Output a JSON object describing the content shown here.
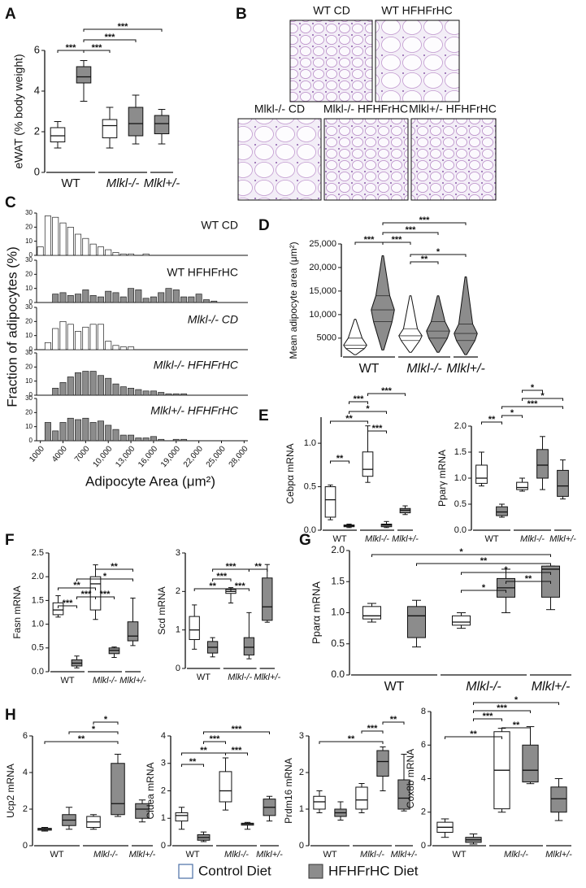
{
  "legend": [
    {
      "name": "Control Diet",
      "color": "#ffffff"
    },
    {
      "name": "HFHFrHC Diet",
      "color": "#8c8c8c"
    }
  ],
  "groups": [
    "WT",
    "Mlkl-/-",
    "Mlkl+/-"
  ],
  "micrographs": {
    "letter": "B",
    "labels": [
      "WT CD",
      "WT HFHFrHC",
      "Mlkl-/- CD",
      "Mlkl-/- HFHFrHC",
      "Mlkl+/- HFHFrHC"
    ]
  },
  "chart_data": [
    {
      "type": "box",
      "letter": "A",
      "ylabel": "eWAT (% body weight)",
      "ylim": [
        0,
        6
      ],
      "yticks": [
        0,
        2,
        4,
        6
      ],
      "series": [
        {
          "values": [
            [
              1.2,
              1.5,
              1.8,
              2.2,
              2.5
            ],
            [
              1.2,
              1.7,
              2.3,
              2.6,
              3.2
            ],
            null
          ]
        },
        {
          "values": [
            [
              3.5,
              4.4,
              4.7,
              5.2,
              5.5
            ],
            [
              1.4,
              1.8,
              2.4,
              3.2,
              3.8
            ],
            [
              1.4,
              1.9,
              2.4,
              2.8,
              3.1
            ]
          ]
        }
      ],
      "annotations": [
        "***",
        "***",
        "***",
        "***"
      ]
    },
    {
      "type": "histogram",
      "letter": "C",
      "ylabel": "Fraction of adipocytes (%)",
      "xlabel": "Adipocyte Area (μm²)",
      "bins": [
        500,
        1500,
        2500,
        3500,
        4500,
        5500,
        6500,
        7500,
        8500,
        9500,
        10500,
        11500,
        12500,
        13500,
        14500,
        15500,
        16500,
        17500,
        18500,
        19500,
        20500,
        21500,
        22500,
        23500,
        24500,
        25500,
        26500,
        27500,
        28500
      ],
      "xlim": [
        500,
        28500
      ],
      "xticks": [
        1000,
        4000,
        7000,
        {
          "value": 10000,
          "label": "10,000"
        },
        {
          "value": 13000,
          "label": "13,000"
        },
        {
          "value": 16000,
          "label": "16,000"
        },
        {
          "value": 19000,
          "label": "19,000"
        },
        {
          "value": 22000,
          "label": "22,000"
        },
        {
          "value": 25000,
          "label": "25,000"
        },
        {
          "value": 28000,
          "label": "28,000"
        }
      ],
      "ylim": [
        0,
        30
      ],
      "yticks": [
        0,
        10,
        20,
        30
      ],
      "subplots": [
        {
          "label": "WT CD",
          "color": "#ffffff",
          "values": [
            6,
            28,
            27,
            23,
            20,
            15,
            12,
            8,
            6,
            4,
            2,
            1,
            1,
            0,
            1,
            0,
            0,
            0,
            0,
            0,
            0,
            0,
            0,
            0,
            0,
            0,
            0,
            0
          ]
        },
        {
          "label": "WT HFHFrHC",
          "color": "#8c8c8c",
          "values": [
            0,
            0,
            6,
            7,
            5,
            6,
            9,
            5,
            4,
            8,
            7,
            4,
            10,
            9,
            3,
            4,
            7,
            10,
            9,
            4,
            4,
            6,
            2,
            1,
            0,
            0,
            0,
            0
          ]
        },
        {
          "label": "Mlkl-/- CD",
          "color": "#ffffff",
          "values": [
            0,
            5,
            15,
            20,
            18,
            13,
            16,
            18,
            18,
            6,
            3,
            2,
            2,
            0,
            0,
            0,
            0,
            0,
            0,
            0,
            0,
            0,
            0,
            0,
            0,
            0,
            0,
            0
          ]
        },
        {
          "label": "Mlkl-/- HFHFrHC",
          "color": "#8c8c8c",
          "values": [
            0,
            0,
            5,
            9,
            13,
            16,
            17,
            17,
            14,
            12,
            8,
            6,
            5,
            4,
            3,
            3,
            2,
            1,
            1,
            1,
            0,
            0,
            0,
            0,
            0,
            0,
            0,
            0
          ]
        },
        {
          "label": "Mlkl+/- HFHFrHC",
          "color": "#8c8c8c",
          "values": [
            0,
            13,
            7,
            13,
            16,
            15,
            16,
            13,
            14,
            11,
            8,
            4,
            4,
            2,
            2,
            3,
            1,
            0,
            1,
            1,
            0,
            0,
            0,
            0,
            0,
            0,
            0,
            0
          ]
        }
      ]
    },
    {
      "type": "violin",
      "letter": "D",
      "ylabel": "Mean adipocyte area (μm²)",
      "ylim": [
        1000,
        25000
      ],
      "yticks": [
        5000,
        {
          "value": 10000,
          "label": "10,000"
        },
        {
          "value": 15000,
          "label": "15,000"
        },
        {
          "value": 20000,
          "label": "20,000"
        },
        {
          "value": 25000,
          "label": "25,000"
        }
      ],
      "series": [
        {
          "values": [
            [
              1500,
              2800,
              3500,
              5000,
              9000
            ],
            [
              2000,
              4500,
              5500,
              7000,
              14000
            ],
            null
          ]
        },
        {
          "values": [
            [
              2500,
              8500,
              11000,
              14000,
              22500
            ],
            [
              2000,
              5000,
              6500,
              8500,
              14000
            ],
            [
              1500,
              4500,
              6000,
              8000,
              18000
            ]
          ]
        }
      ],
      "annotations": [
        "***",
        "***",
        "***",
        "***",
        "**",
        "*"
      ]
    },
    {
      "type": "box",
      "letter": "E",
      "ylabel": "Cebpα mRNA",
      "ylim": [
        0,
        1.3
      ],
      "yticks": [
        {
          "value": 0,
          "label": "0.0"
        },
        {
          "value": 0.5,
          "label": "0.5"
        },
        {
          "value": 1,
          "label": "1.0"
        }
      ],
      "series": [
        {
          "values": [
            [
              0.12,
              0.15,
              0.35,
              0.5,
              0.52
            ],
            [
              0.55,
              0.62,
              0.7,
              0.9,
              1.2
            ],
            null
          ]
        },
        {
          "values": [
            [
              0.03,
              0.04,
              0.05,
              0.06,
              0.07
            ],
            [
              0.03,
              0.04,
              0.06,
              0.07,
              0.1
            ],
            [
              0.18,
              0.2,
              0.23,
              0.25,
              0.28
            ]
          ]
        }
      ],
      "annotations": [
        "**",
        "**",
        "*",
        "***",
        "***",
        "***"
      ]
    },
    {
      "type": "box",
      "ylabel": "Pparγ mRNA",
      "ylim": [
        0,
        2
      ],
      "yticks": [
        {
          "value": 0,
          "label": "0.0"
        },
        {
          "value": 0.5,
          "label": "0.5"
        },
        {
          "value": 1,
          "label": "1.0"
        },
        {
          "value": 1.5,
          "label": "1.5"
        },
        {
          "value": 2,
          "label": "2.0"
        }
      ],
      "series": [
        {
          "values": [
            [
              0.85,
              0.9,
              1.0,
              1.25,
              1.5
            ],
            [
              0.75,
              0.78,
              0.82,
              0.92,
              1.0
            ],
            null
          ]
        },
        {
          "values": [
            [
              0.25,
              0.28,
              0.35,
              0.45,
              0.5
            ],
            [
              0.78,
              1.0,
              1.25,
              1.55,
              1.8
            ],
            [
              0.6,
              0.65,
              0.85,
              1.15,
              1.35
            ]
          ]
        }
      ],
      "annotations": [
        "*",
        "*",
        "***",
        "*",
        "**"
      ]
    },
    {
      "type": "box",
      "letter": "F",
      "ylabel": "Fasn mRNA",
      "ylim": [
        0,
        2.5
      ],
      "yticks": [
        {
          "value": 0,
          "label": "0.0"
        },
        {
          "value": 0.5,
          "label": "0.5"
        },
        {
          "value": 1,
          "label": "1.0"
        },
        {
          "value": 1.5,
          "label": "1.5"
        },
        {
          "value": 2,
          "label": "2.0"
        },
        {
          "value": 2.5,
          "label": "2.5"
        }
      ],
      "series": [
        {
          "values": [
            [
              1.15,
              1.2,
              1.3,
              1.45,
              1.6
            ],
            [
              1.1,
              1.3,
              1.85,
              2.0,
              2.25
            ],
            null
          ]
        },
        {
          "values": [
            [
              0.08,
              0.12,
              0.18,
              0.25,
              0.33
            ],
            [
              0.3,
              0.38,
              0.45,
              0.5,
              0.52
            ],
            [
              0.55,
              0.65,
              0.75,
              1.05,
              1.55
            ]
          ]
        }
      ],
      "annotations": [
        "**",
        "*",
        "**",
        "***",
        "***",
        "***"
      ]
    },
    {
      "type": "box",
      "ylabel": "Scd mRNA",
      "ylim": [
        0,
        3
      ],
      "yticks": [
        0,
        1,
        2,
        3
      ],
      "series": [
        {
          "values": [
            [
              0.5,
              0.75,
              1.0,
              1.35,
              1.65
            ],
            [
              1.7,
              1.95,
              2.0,
              2.05,
              2.1
            ],
            null
          ]
        },
        {
          "values": [
            [
              0.3,
              0.4,
              0.55,
              0.7,
              0.8
            ],
            [
              0.25,
              0.35,
              0.55,
              0.8,
              1.45
            ],
            [
              1.2,
              1.25,
              1.6,
              2.35,
              2.7
            ]
          ]
        }
      ],
      "annotations": [
        "***",
        "**",
        "***",
        "**",
        "***"
      ]
    },
    {
      "type": "box",
      "letter": "G",
      "ylabel": "Pparα mRNA",
      "ylim": [
        0,
        2
      ],
      "yticks": [
        {
          "value": 0,
          "label": "0.0"
        },
        {
          "value": 0.5,
          "label": "0.5"
        },
        {
          "value": 1,
          "label": "1.0"
        },
        {
          "value": 1.5,
          "label": "1.5"
        },
        {
          "value": 2,
          "label": "2.0"
        }
      ],
      "series": [
        {
          "values": [
            [
              0.85,
              0.9,
              0.95,
              1.1,
              1.15
            ],
            [
              0.75,
              0.8,
              0.85,
              0.95,
              1.0
            ],
            null
          ]
        },
        {
          "values": [
            [
              0.45,
              0.6,
              0.95,
              1.1,
              1.2
            ],
            [
              1.0,
              1.25,
              1.4,
              1.55,
              1.7
            ],
            [
              1.05,
              1.25,
              1.7,
              1.75,
              1.75
            ]
          ]
        }
      ],
      "annotations": [
        "*",
        "**",
        "*",
        "**",
        "*"
      ]
    },
    {
      "type": "box",
      "letter": "H",
      "ylabel": "Ucp2 mRNA",
      "ylim": [
        0,
        6
      ],
      "yticks": [
        0,
        2,
        4,
        6
      ],
      "series": [
        {
          "values": [
            [
              0.8,
              0.85,
              0.9,
              0.95,
              1.0
            ],
            [
              0.9,
              1.0,
              1.3,
              1.6,
              1.7
            ],
            null
          ]
        },
        {
          "values": [
            [
              0.9,
              1.1,
              1.4,
              1.7,
              2.1
            ],
            [
              1.6,
              1.7,
              2.3,
              4.5,
              5.0
            ],
            [
              1.3,
              1.5,
              2.0,
              2.3,
              2.5
            ]
          ]
        }
      ],
      "annotations": [
        "*",
        "*",
        "**"
      ]
    },
    {
      "type": "box",
      "ylabel": "Cidea mRNA",
      "ylim": [
        0,
        4
      ],
      "yticks": [
        0,
        1,
        2,
        3,
        4
      ],
      "series": [
        {
          "values": [
            [
              0.6,
              0.9,
              1.1,
              1.2,
              1.4
            ],
            [
              1.3,
              1.6,
              2.0,
              2.7,
              3.2
            ],
            null
          ]
        },
        {
          "values": [
            [
              0.15,
              0.2,
              0.3,
              0.4,
              0.5
            ],
            [
              0.6,
              0.75,
              0.8,
              0.82,
              0.85
            ],
            [
              0.9,
              1.1,
              1.4,
              1.7,
              1.8
            ]
          ]
        }
      ],
      "annotations": [
        "***",
        "***",
        "**",
        "***",
        "**"
      ]
    },
    {
      "type": "box",
      "ylabel": "Prdm16 mRNA",
      "ylim": [
        0,
        3
      ],
      "yticks": [
        0,
        1,
        2,
        3
      ],
      "series": [
        {
          "values": [
            [
              0.9,
              1.0,
              1.2,
              1.35,
              1.5
            ],
            [
              0.9,
              1.0,
              1.25,
              1.6,
              1.7
            ],
            null
          ]
        },
        {
          "values": [
            [
              0.7,
              0.8,
              0.9,
              1.0,
              1.2
            ],
            [
              1.5,
              1.9,
              2.3,
              2.6,
              2.7
            ],
            [
              0.95,
              1.0,
              1.3,
              1.8,
              2.5
            ]
          ]
        }
      ],
      "annotations": [
        "**",
        "***",
        "**"
      ]
    },
    {
      "type": "box",
      "ylabel": "Cox8b mRNA",
      "ylim": [
        0,
        8
      ],
      "yticks": [
        0,
        2,
        4,
        6,
        8
      ],
      "series": [
        {
          "values": [
            [
              0.5,
              0.8,
              1.1,
              1.4,
              1.6
            ],
            [
              2.0,
              2.2,
              4.5,
              6.8,
              7.0
            ],
            null
          ]
        },
        {
          "values": [
            [
              0.1,
              0.2,
              0.35,
              0.5,
              0.7
            ],
            [
              3.7,
              3.8,
              4.5,
              6.0,
              7.1
            ],
            [
              1.5,
              2.0,
              2.8,
              3.5,
              4.0
            ]
          ]
        }
      ],
      "annotations": [
        "*",
        "***",
        "***",
        "**",
        "**"
      ]
    }
  ]
}
